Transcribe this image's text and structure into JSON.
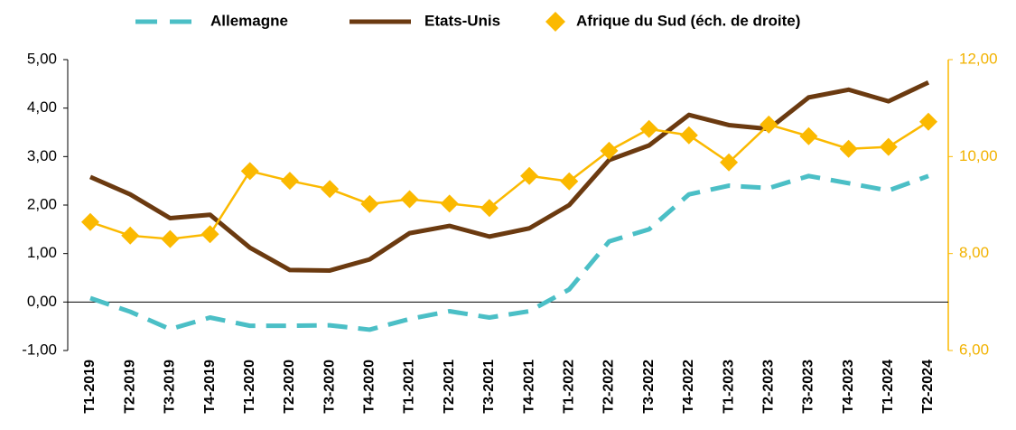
{
  "chart_data": {
    "type": "line",
    "categories": [
      "T1-2019",
      "T2-2019",
      "T3-2019",
      "T4-2019",
      "T1-2020",
      "T2-2020",
      "T3-2020",
      "T4-2020",
      "T1-2021",
      "T2-2021",
      "T3-2021",
      "T4-2021",
      "T1-2022",
      "T2-2022",
      "T3-2022",
      "T4-2022",
      "T1-2023",
      "T2-2023",
      "T3-2023",
      "T4-2023",
      "T1-2024",
      "T2-2024"
    ],
    "series": [
      {
        "name": "Allemagne",
        "color": "#4bbfc6",
        "style": "dashed",
        "values": [
          0.08,
          -0.2,
          -0.56,
          -0.32,
          -0.49,
          -0.49,
          -0.48,
          -0.57,
          -0.35,
          -0.19,
          -0.32,
          -0.19,
          0.26,
          1.25,
          1.5,
          2.22,
          2.4,
          2.35,
          2.6,
          2.45,
          2.3,
          2.6
        ]
      },
      {
        "name": "Etats-Unis",
        "color": "#6b3a10",
        "style": "solid",
        "values": [
          2.58,
          2.22,
          1.73,
          1.8,
          1.12,
          0.66,
          0.65,
          0.88,
          1.42,
          1.57,
          1.35,
          1.52,
          2.0,
          2.93,
          3.23,
          3.86,
          3.65,
          3.57,
          4.22,
          4.38,
          4.14,
          4.53
        ]
      },
      {
        "name": "Afrique du Sud (éch. de droite)",
        "color": "#fbb900",
        "style": "diamond",
        "axis": "y2",
        "values": [
          8.65,
          8.37,
          8.3,
          8.4,
          9.7,
          9.5,
          9.33,
          9.02,
          9.12,
          9.03,
          8.94,
          9.6,
          9.49,
          10.12,
          10.57,
          10.44,
          9.88,
          10.66,
          10.42,
          10.16,
          10.2,
          10.72
        ]
      }
    ],
    "ylim": [
      -1,
      5
    ],
    "yticks": [
      {
        "value": -1,
        "label": "-1,00"
      },
      {
        "value": 0,
        "label": "0,00"
      },
      {
        "value": 1,
        "label": "1,00"
      },
      {
        "value": 2,
        "label": "2,00"
      },
      {
        "value": 3,
        "label": "3,00"
      },
      {
        "value": 4,
        "label": "4,00"
      },
      {
        "value": 5,
        "label": "5,00"
      }
    ],
    "y2lim": [
      6,
      12
    ],
    "y2ticks": [
      {
        "value": 6,
        "label": "6,00"
      },
      {
        "value": 8,
        "label": "8,00"
      },
      {
        "value": 10,
        "label": "10,00"
      },
      {
        "value": 12,
        "label": "12,00"
      }
    ],
    "grid": false,
    "legend": "top"
  }
}
